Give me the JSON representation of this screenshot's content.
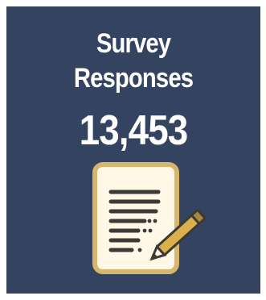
{
  "tile": {
    "title_line1": "Survey",
    "title_line2": "Responses",
    "count": "13,453",
    "icon": "document-pencil-icon",
    "colors": {
      "background": "#34435f",
      "text": "#ffffff",
      "paper": "#fff8e6",
      "paper_border": "#d7b56d",
      "lines": "#3d3a35",
      "pencil": "#d9b04c"
    }
  }
}
